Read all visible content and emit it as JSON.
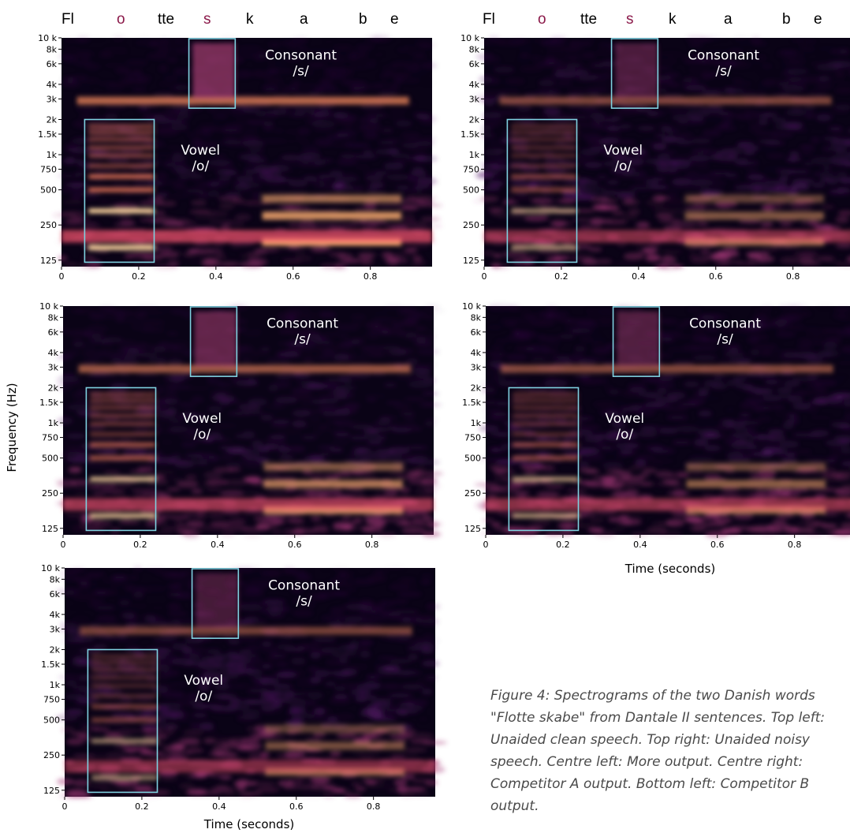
{
  "header_words": [
    {
      "text": "Fl",
      "highlight": false
    },
    {
      "text": "o",
      "highlight": true
    },
    {
      "text": "tte",
      "highlight": false
    },
    {
      "text": "s",
      "highlight": true
    },
    {
      "text": "k",
      "highlight": false
    },
    {
      "text": "a",
      "highlight": false
    },
    {
      "text": "b",
      "highlight": false
    },
    {
      "text": "e",
      "highlight": false
    }
  ],
  "y_axis_label": "Frequency (Hz)",
  "x_axis_label": "Time (seconds)",
  "caption": "Figure 4: Spectrograms of the two Danish words \"Flotte skabe\" from Dantale II sentences. Top left: Unaided clean speech. Top right: Unaided noisy speech. Centre left: More output. Centre right: Competitor A output. Bottom left: Competitor B output.",
  "colors": {
    "box_outline": "#7fd1e0",
    "highlight_letter": "#8b1a4a"
  },
  "chart_data": [
    {
      "type": "heatmap",
      "panel": "top-left",
      "x_ticks": [
        "0",
        "0.2",
        "0.4",
        "0.6",
        "0.8"
      ],
      "x_range": [
        0,
        0.96
      ],
      "y_ticks": [
        "125",
        "250",
        "500",
        "750",
        "1k",
        "1.5k",
        "2k",
        "3k",
        "4k",
        "6k",
        "8k",
        "10 k"
      ],
      "y_scale": "log",
      "annotations": [
        {
          "label_lines": [
            "Vowel",
            "/o/"
          ],
          "x_range": [
            0.06,
            0.24
          ],
          "y_range_hz": [
            120,
            2000
          ]
        },
        {
          "label_lines": [
            "Consonant",
            "/s/"
          ],
          "x_range": [
            0.33,
            0.45
          ],
          "y_range_hz": [
            2500,
            10000
          ]
        }
      ],
      "energy": 1.0
    },
    {
      "type": "heatmap",
      "panel": "top-right",
      "x_ticks": [
        "0",
        "0.2",
        "0.4",
        "0.6",
        "0.8"
      ],
      "x_range": [
        0,
        0.96
      ],
      "y_ticks": [
        "125",
        "250",
        "500",
        "750",
        "1k",
        "1.5k",
        "2k",
        "3k",
        "4k",
        "6k",
        "8k",
        "10 k"
      ],
      "y_scale": "log",
      "annotations": [
        {
          "label_lines": [
            "Vowel",
            "/o/"
          ],
          "x_range": [
            0.06,
            0.24
          ],
          "y_range_hz": [
            120,
            2000
          ]
        },
        {
          "label_lines": [
            "Consonant",
            "/s/"
          ],
          "x_range": [
            0.33,
            0.45
          ],
          "y_range_hz": [
            2500,
            10000
          ]
        }
      ],
      "energy": 0.6
    },
    {
      "type": "heatmap",
      "panel": "centre-left",
      "x_ticks": [
        "0",
        "0.2",
        "0.4",
        "0.6",
        "0.8"
      ],
      "x_range": [
        0,
        0.96
      ],
      "y_ticks": [
        "125",
        "250",
        "500",
        "750",
        "1k",
        "1.5k",
        "2k",
        "3k",
        "4k",
        "6k",
        "8k",
        "10 k"
      ],
      "y_scale": "log",
      "annotations": [
        {
          "label_lines": [
            "Vowel",
            "/o/"
          ],
          "x_range": [
            0.06,
            0.24
          ],
          "y_range_hz": [
            120,
            2000
          ]
        },
        {
          "label_lines": [
            "Consonant",
            "/s/"
          ],
          "x_range": [
            0.33,
            0.45
          ],
          "y_range_hz": [
            2500,
            10000
          ]
        }
      ],
      "energy": 0.8
    },
    {
      "type": "heatmap",
      "panel": "centre-right",
      "x_ticks": [
        "0",
        "0.2",
        "0.4",
        "0.6",
        "0.8"
      ],
      "x_range": [
        0,
        0.96
      ],
      "y_ticks": [
        "125",
        "250",
        "500",
        "750",
        "1k",
        "1.5k",
        "2k",
        "3k",
        "4k",
        "6k",
        "8k",
        "10 k"
      ],
      "y_scale": "log",
      "annotations": [
        {
          "label_lines": [
            "Vowel",
            "/o/"
          ],
          "x_range": [
            0.06,
            0.24
          ],
          "y_range_hz": [
            120,
            2000
          ]
        },
        {
          "label_lines": [
            "Consonant",
            "/s/"
          ],
          "x_range": [
            0.33,
            0.45
          ],
          "y_range_hz": [
            2500,
            10000
          ]
        }
      ],
      "energy": 0.65
    },
    {
      "type": "heatmap",
      "panel": "bottom-left",
      "x_ticks": [
        "0",
        "0.2",
        "0.4",
        "0.6",
        "0.8"
      ],
      "x_range": [
        0,
        0.96
      ],
      "y_ticks": [
        "125",
        "250",
        "500",
        "750",
        "1k",
        "1.5k",
        "2k",
        "3k",
        "4k",
        "6k",
        "8k",
        "10 k"
      ],
      "y_scale": "log",
      "annotations": [
        {
          "label_lines": [
            "Vowel",
            "/o/"
          ],
          "x_range": [
            0.06,
            0.24
          ],
          "y_range_hz": [
            120,
            2000
          ]
        },
        {
          "label_lines": [
            "Consonant",
            "/s/"
          ],
          "x_range": [
            0.33,
            0.45
          ],
          "y_range_hz": [
            2500,
            10000
          ]
        }
      ],
      "energy": 0.55
    }
  ]
}
